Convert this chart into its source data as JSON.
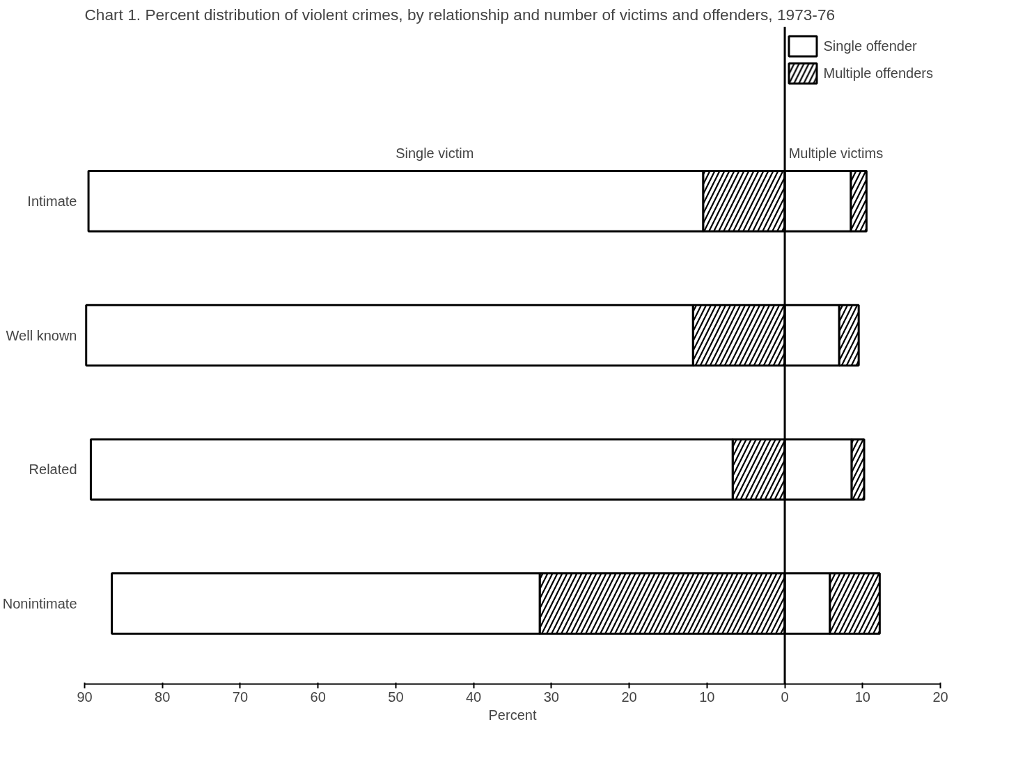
{
  "chart_data": {
    "type": "bar",
    "orientation": "horizontal",
    "stacked": true,
    "title": "Chart 1. Percent distribution of violent crimes, by relationship and number of victims and offenders, 1973-76",
    "xlabel": "Percent",
    "categories": [
      "Intimate",
      "Well known",
      "Related",
      "Nonintimate"
    ],
    "series": [
      {
        "name": "Multiple offenders",
        "color": "#000000",
        "values": [
          -10.5,
          -11.8,
          -6.7,
          -31.5
        ]
      },
      {
        "name": "Single offender",
        "color": "#ffffff",
        "values": [
          -79,
          -78,
          -82.5,
          -55
        ]
      },
      {
        "color": "#ffffff",
        "values": [
          8.5,
          7,
          8.6,
          5.8
        ]
      },
      {
        "color": "#000000",
        "values": [
          2,
          2.5,
          1.6,
          6.4
        ]
      }
    ],
    "xlim": [
      -90,
      20
    ],
    "xticks": [
      {
        "value": -90,
        "label": "90"
      },
      {
        "value": -80,
        "label": "80"
      },
      {
        "value": -70,
        "label": "70"
      },
      {
        "value": -60,
        "label": "60"
      },
      {
        "value": -50,
        "label": "50"
      },
      {
        "value": -40,
        "label": "40"
      },
      {
        "value": -30,
        "label": "30"
      },
      {
        "value": -20,
        "label": "20"
      },
      {
        "value": -10,
        "label": "10"
      },
      0,
      10,
      20
    ],
    "ref_lines": [
      {
        "axis": "x",
        "value": 0,
        "color": "#000000"
      }
    ],
    "annotations": [
      "Single victim",
      "Multiple victims"
    ],
    "legend": "top right",
    "grid": false
  }
}
